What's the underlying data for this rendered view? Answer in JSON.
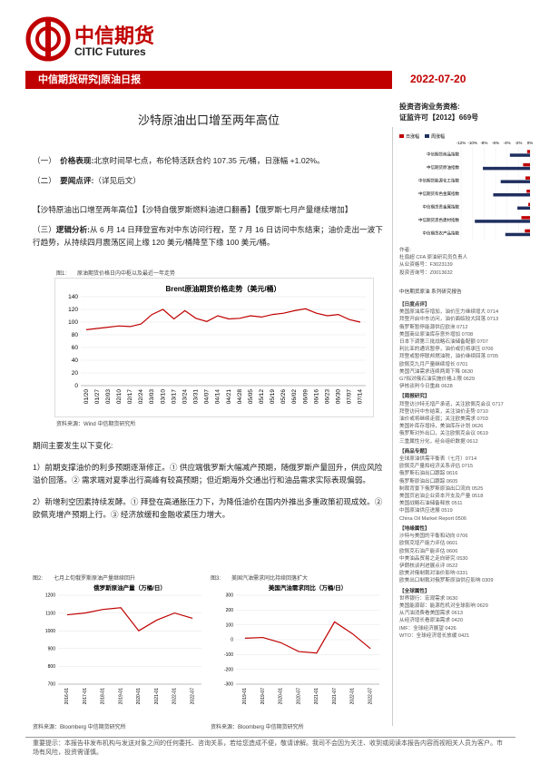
{
  "header": {
    "logo_cn": "中信期货",
    "logo_en": "CITIC Futures",
    "banner": "中信期货研究|原油日报",
    "date": "2022-07-20"
  },
  "title": "沙特原油出口增至两年高位",
  "qualification": [
    "投资咨询业务资格:",
    "证监许可【2012】669号"
  ],
  "sidebar_chart": {
    "type": "bar",
    "series": [
      {
        "name": "日涨幅",
        "color": "#c00000",
        "values": [
          -0.5,
          -1.2,
          -0.8,
          -0.6,
          -0.3,
          -1.5,
          -0.9
        ]
      },
      {
        "name": "周涨幅",
        "color": "#1f2f5f",
        "values": [
          -3.5,
          -8.2,
          -5.1,
          -6.4,
          -2.2,
          -9.6,
          -4.3
        ]
      }
    ],
    "categories": [
      "中信期货商品指数",
      "中信期货原油指数",
      "中信期货能源化工指数",
      "中信期货有色金属指数",
      "中信期货贵金属指数",
      "中信期货黑色建材指数",
      "中信期货农产品指数"
    ],
    "xlim": [
      -12,
      0
    ],
    "xticks": [
      {
        "value": -12,
        "label": "-12%"
      },
      {
        "value": -10,
        "label": "-10%"
      },
      {
        "value": -8,
        "label": "-8%"
      },
      {
        "value": -6,
        "label": "-6%"
      },
      {
        "value": -4,
        "label": "-4%"
      },
      {
        "value": -2,
        "label": "-2%"
      },
      {
        "value": 0,
        "label": "0%"
      }
    ]
  },
  "authors": [
    "作者:",
    "杜扇超 CFA 原油研究员负责人",
    "从业资格号：F3023139",
    "投资咨询号：Z0013632"
  ],
  "sidebar_title": "中信期货原油 系列研究报告",
  "sidebar_sections": [
    {
      "heading": "【日度点评】",
      "items": [
        "美国原油库存增加，油价压力继续增大 0714",
        "拜登开启中东访问，油价面临较大回落 0713",
        "俄罗斯暂停能源供应欧洲 0712",
        "美国商业原油库存意外增加 0708",
        "日本下调第三批战略石油储备配额 0707",
        "利比亚的通讯暂停，油价或仍将承压 0706",
        "拜登或暂停联邦燃油税，油价继续回落 0705",
        "欧佩克九月产量继续增长 0701",
        "美国汽油需求连续两周下降 0630",
        "G7拟对俄石油实施价格上限 0629",
        "伊核谈判今日重启 0628"
      ]
    },
    {
      "heading": "【周报研究】",
      "items": [
        "拜登访沙特无增产承诺，关注欧佩克会议 0717",
        "拜登访问中东结束，关注油价走势 0710",
        "油价或将继续走弱；关注欧美需求 0703",
        "美国补库存增持，美油库存计划 0626",
        "俄罗斯对外出口，关注欧佩克会议 0619",
        "三重属性分化，经合组织数据 0612"
      ]
    },
    {
      "heading": "【商品专题】",
      "items": [
        "全球原油供需平衡表（七月）0714",
        "欧佩克产量和经济关系评估 0715",
        "俄罗斯石油出口跟踪 0616",
        "俄罗斯原油出口跟踪 0605",
        "制裁背景下俄罗斯原油出口流向 0525",
        "美国页岩油企业资本开支及产量 0518",
        "美国战略石油储备释放 0511",
        "中国原油供应进展 0519",
        "China Oil Market Report 0506"
      ]
    },
    {
      "heading": "【地缘属性】",
      "items": [
        "沙特与美国的平衡和动向 0706",
        "欧佩克增产能力评估 0601",
        "欧佩克石油产能评估 0606",
        "中美油品贸易之走向研究 0530",
        "伊朗核谈判进展点评 0522",
        "欧美对俄制裁对油价影响 0331",
        "欧美出口制裁对俄罗斯原油供应影响 0309"
      ]
    },
    {
      "heading": "【全球属性】",
      "items": [
        "世界银行：宏观需求 0630",
        "美国能源部：能源危机对全球影响 0629",
        "从汽油消费看美国需求 0613",
        "从经济增长看原油需求 0420",
        "IMF：全球经济展望 0426",
        "WTO：全球经济增长放缓 0421"
      ]
    }
  ],
  "sections": [
    {
      "num": "（一）",
      "label": "价格表现:",
      "text": "北京时间早七点，布伦特活跃合约 107.35 元/桶，日涨幅 +1.02%。"
    },
    {
      "num": "（二）",
      "label": "要闻点评:",
      "text": "（详见后文）"
    }
  ],
  "tags": "【沙特原油出口增至两年高位】【沙特自俄罗斯燃料油进口翻番】【俄罗斯七月产量继续增加】",
  "logic": {
    "num": "（三）",
    "label": "逻辑分析:",
    "text": "从 6 月 14 日拜登宣布对中东访问行程，至 7 月 16 日访问中东结束；油价走出一波下行趋势，从持续四月震荡区间上缘 120 美元/桶降至下缘 100 美元/桶。"
  },
  "changes_intro": "期间主要发生以下变化:",
  "paragraphs": [
    "1）前期支撑油价的利多预期逐渐修正。① 供应端俄罗斯大幅减产预期，随俄罗斯产量回升，供应风险溢价回落。② 需求端对夏季出行高峰有较高预期；但近期海外交通出行和油品需求实际表现偏弱。",
    "2）新增利空因素持续发酵。① 拜登在高通胀压力下，为降低油价在国内外推出多重政策初现成效。② 欧佩克增产预期上行。③ 经济放缓和金融收紧压力增大。"
  ],
  "figures": [
    {
      "caption": "图1:　　原油期货价格日内中枢以及最近一年走势",
      "source": "资料来源：Wind 中信期货研究所",
      "chart": {
        "type": "line",
        "title": "Brent原油期货价格走势（美元/桶）",
        "color": "#c00000",
        "categories": [
          "01/20",
          "01/27",
          "02/03",
          "02/10",
          "02/17",
          "02/24",
          "03/03",
          "03/10",
          "03/17",
          "03/24",
          "03/31",
          "04/07",
          "04/14",
          "04/21",
          "04/28",
          "05/05",
          "05/12",
          "05/19",
          "05/26",
          "06/02",
          "06/09",
          "06/16",
          "06/23",
          "06/30",
          "07/07",
          "07/14"
        ],
        "values": [
          88,
          90,
          92,
          94,
          93,
          97,
          112,
          120,
          105,
          118,
          106,
          101,
          110,
          105,
          106,
          110,
          108,
          112,
          114,
          118,
          121,
          114,
          110,
          112,
          104,
          100
        ],
        "ylim": [
          0,
          140
        ],
        "yticks": [
          0,
          20,
          40,
          60,
          80,
          100,
          120,
          140
        ]
      }
    },
    {
      "caption": "图2:　　七月上旬俄罗斯原油产量继续回升",
      "source": "资料来源：Bloomberg 中信期货研究所",
      "chart": {
        "type": "line",
        "title": "俄罗斯原油产量（万桶/日）",
        "color": "#c00000",
        "categories": [
          "2016-01",
          "2017-01",
          "2018-01",
          "2019-01",
          "2020-01",
          "2021-01",
          "2022-01",
          "2022-07"
        ],
        "values": [
          1090,
          1100,
          1120,
          1130,
          1000,
          1060,
          1100,
          1070
        ],
        "ylim": [
          700,
          1200
        ],
        "yticks": [
          700,
          800,
          900,
          1000,
          1100,
          1200
        ]
      }
    },
    {
      "caption": "图3:　　美国汽油需求同比持续回落扩大",
      "source": "资料来源：Bloomberg 中信期货研究所",
      "chart": {
        "type": "line",
        "title": "美国汽油需求同比（万桶/日）",
        "color": "#c00000",
        "categories": [
          "2019-01",
          "2019-07",
          "2020-01",
          "2020-07",
          "2021-01",
          "2021-07",
          "2022-01",
          "2022-07"
        ],
        "values": [
          10,
          15,
          -20,
          -80,
          -90,
          120,
          40,
          -60
        ],
        "ylim": [
          -300,
          300
        ],
        "yticks": [
          -300,
          -200,
          -100,
          0,
          100,
          200,
          300
        ]
      }
    }
  ],
  "footer": "重要提示：本报告非发布机构与发送对象之间的任何委托、咨询关系，若给您造成不便，敬请谅解。我司不会因为关注、收到或阅读本报告内容而视相关人员为客户。市场有风险，投资需谨慎。"
}
